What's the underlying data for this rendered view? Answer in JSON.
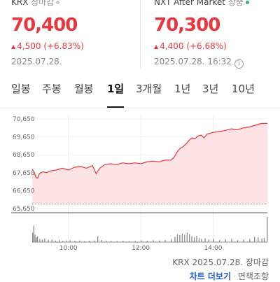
{
  "krx": {
    "label": "KRX",
    "status": "장마감",
    "status_dot_color": "#c8c8c8",
    "price": "70,400",
    "change": "4,500 (+6.83%)",
    "date": "2025.07.28."
  },
  "nxt": {
    "label": "NXT After Market",
    "status": "장중",
    "status_dot_color": "#2bb673",
    "price": "70,300",
    "change": "4,400 (+6.68%)",
    "date": "2025.07.28. 16:32"
  },
  "tabs": [
    "일봉",
    "주봉",
    "월봉",
    "1일",
    "3개월",
    "1년",
    "3년",
    "10년"
  ],
  "active_tab": "1일",
  "colors": {
    "up": "#e8373e",
    "fill": "#fde3e3",
    "volume": "#8a8a8a"
  },
  "chart_data": {
    "type": "area",
    "y_ticks": [
      "70,650",
      "69,650",
      "68,650",
      "67,650",
      "66,650",
      "65,650"
    ],
    "y_values": [
      70650,
      69650,
      68650,
      67650,
      66650,
      65650
    ],
    "ylim": [
      65650,
      70650
    ],
    "x_ticks": [
      "10:00",
      "12:00",
      "14:00"
    ],
    "x_tick_minutes": [
      60,
      180,
      300
    ],
    "baseline": 65900,
    "session_minutes": 390,
    "price_points": [
      [
        0,
        67850
      ],
      [
        3,
        67700
      ],
      [
        6,
        67400
      ],
      [
        9,
        67350
      ],
      [
        12,
        67600
      ],
      [
        18,
        67700
      ],
      [
        24,
        67650
      ],
      [
        30,
        67750
      ],
      [
        40,
        67800
      ],
      [
        50,
        67900
      ],
      [
        60,
        67800
      ],
      [
        70,
        67950
      ],
      [
        80,
        68000
      ],
      [
        90,
        67900
      ],
      [
        100,
        68050
      ],
      [
        106,
        67600
      ],
      [
        112,
        67900
      ],
      [
        120,
        68100
      ],
      [
        130,
        68150
      ],
      [
        140,
        68100
      ],
      [
        150,
        68200
      ],
      [
        160,
        68150
      ],
      [
        170,
        68200
      ],
      [
        180,
        68150
      ],
      [
        190,
        68250
      ],
      [
        200,
        68300
      ],
      [
        210,
        68250
      ],
      [
        220,
        68350
      ],
      [
        230,
        68350
      ],
      [
        235,
        68500
      ],
      [
        240,
        68800
      ],
      [
        245,
        69000
      ],
      [
        250,
        69100
      ],
      [
        255,
        69250
      ],
      [
        260,
        69450
      ],
      [
        265,
        69600
      ],
      [
        270,
        69550
      ],
      [
        275,
        69700
      ],
      [
        280,
        69750
      ],
      [
        285,
        69600
      ],
      [
        290,
        69800
      ],
      [
        300,
        69900
      ],
      [
        310,
        69950
      ],
      [
        320,
        70000
      ],
      [
        330,
        70100
      ],
      [
        340,
        70050
      ],
      [
        350,
        70150
      ],
      [
        360,
        70200
      ],
      [
        370,
        70300
      ],
      [
        380,
        70400
      ],
      [
        390,
        70400
      ]
    ],
    "volume_points": [
      [
        0,
        0.35
      ],
      [
        2,
        0.62
      ],
      [
        4,
        0.28
      ],
      [
        6,
        0.18
      ],
      [
        8,
        0.22
      ],
      [
        12,
        0.12
      ],
      [
        16,
        0.1
      ],
      [
        20,
        0.14
      ],
      [
        26,
        0.08
      ],
      [
        32,
        0.1
      ],
      [
        38,
        0.06
      ],
      [
        44,
        0.08
      ],
      [
        50,
        0.05
      ],
      [
        56,
        0.06
      ],
      [
        62,
        0.07
      ],
      [
        70,
        0.05
      ],
      [
        78,
        0.06
      ],
      [
        86,
        0.04
      ],
      [
        94,
        0.05
      ],
      [
        102,
        0.06
      ],
      [
        108,
        0.22
      ],
      [
        114,
        0.08
      ],
      [
        122,
        0.06
      ],
      [
        130,
        0.05
      ],
      [
        140,
        0.04
      ],
      [
        150,
        0.05
      ],
      [
        160,
        0.04
      ],
      [
        170,
        0.05
      ],
      [
        180,
        0.06
      ],
      [
        190,
        0.05
      ],
      [
        200,
        0.07
      ],
      [
        210,
        0.06
      ],
      [
        220,
        0.08
      ],
      [
        230,
        0.12
      ],
      [
        236,
        0.2
      ],
      [
        240,
        0.3
      ],
      [
        244,
        0.26
      ],
      [
        248,
        0.32
      ],
      [
        252,
        0.28
      ],
      [
        256,
        0.36
      ],
      [
        260,
        0.3
      ],
      [
        264,
        0.22
      ],
      [
        268,
        0.18
      ],
      [
        272,
        0.24
      ],
      [
        276,
        0.16
      ],
      [
        280,
        0.12
      ],
      [
        286,
        0.14
      ],
      [
        292,
        0.1
      ],
      [
        300,
        0.12
      ],
      [
        310,
        0.08
      ],
      [
        320,
        0.1
      ],
      [
        330,
        0.12
      ],
      [
        340,
        0.08
      ],
      [
        350,
        0.1
      ],
      [
        360,
        0.12
      ],
      [
        368,
        0.2
      ],
      [
        374,
        0.18
      ],
      [
        380,
        0.14
      ],
      [
        384,
        0.16
      ],
      [
        389,
        0.95
      ]
    ]
  },
  "footer": {
    "asof": "KRX 2025.07.28. 장마감",
    "more_label": "차트 더보기",
    "disclaimer": "면책조항"
  }
}
